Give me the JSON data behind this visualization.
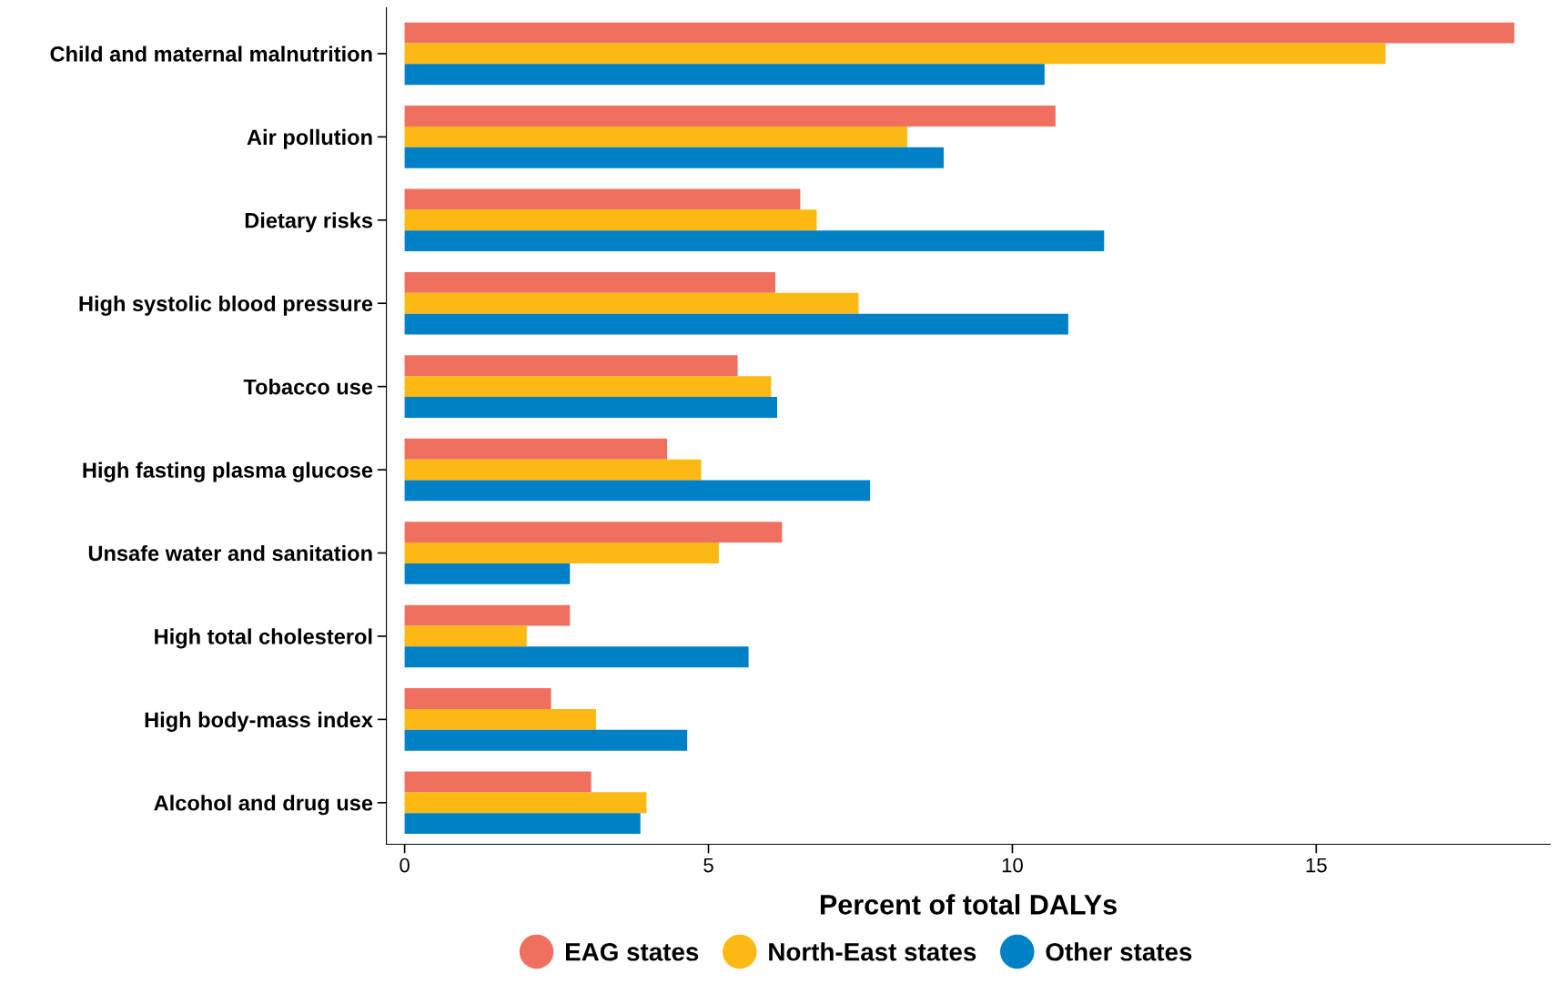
{
  "chart_data": {
    "type": "bar",
    "orientation": "horizontal",
    "xlabel": "Percent of total DALYs",
    "categories": [
      "Child and maternal malnutrition",
      "Air pollution",
      "Dietary risks",
      "High systolic blood pressure",
      "Tobacco use",
      "High fasting plasma glucose",
      "Unsafe water and sanitation",
      "High total cholesterol",
      "High body-mass index",
      "Alcohol and drug use"
    ],
    "series": [
      {
        "name": "EAG states",
        "color": "#f07060",
        "values": [
          18.26,
          10.71,
          6.51,
          6.1,
          5.48,
          4.32,
          6.21,
          2.72,
          2.41,
          3.07
        ]
      },
      {
        "name": "North-East states",
        "color": "#fdb913",
        "values": [
          16.14,
          8.27,
          6.78,
          7.47,
          6.03,
          4.88,
          5.17,
          2.01,
          3.15,
          3.98
        ]
      },
      {
        "name": "Other states",
        "color": "#0080c6",
        "values": [
          10.53,
          8.87,
          11.51,
          10.92,
          6.13,
          7.66,
          2.72,
          5.66,
          4.65,
          3.88
        ]
      }
    ],
    "xlim": [
      -0.3,
      18.85
    ],
    "xticks": [
      0,
      5,
      10,
      15
    ],
    "grid": false,
    "legend": "bottom"
  }
}
